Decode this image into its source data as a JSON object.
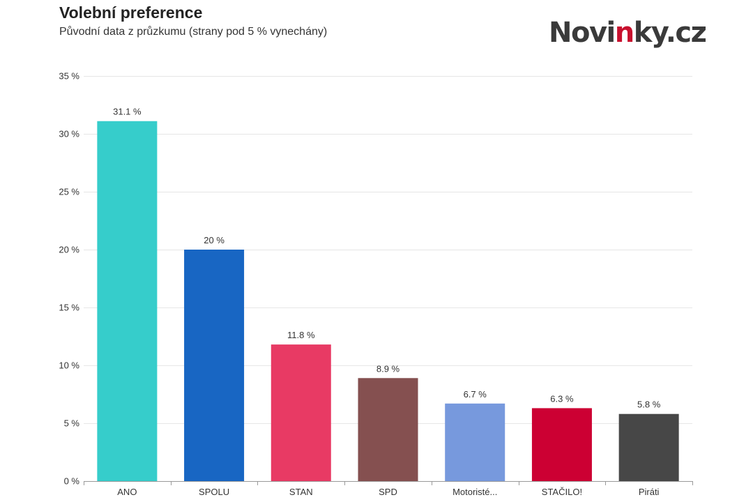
{
  "chart_data": {
    "type": "bar",
    "title": "Volební preference",
    "subtitle": "Původní data z průzkumu (strany pod 5 % vynechány)",
    "xlabel": "",
    "ylabel": "",
    "categories": [
      "ANO",
      "SPOLU",
      "STAN",
      "SPD",
      "Motoristé...",
      "STAČILO!",
      "Piráti"
    ],
    "values": [
      31.1,
      20,
      11.8,
      8.9,
      6.7,
      6.3,
      5.8
    ],
    "value_labels": [
      "31.1 %",
      "20 %",
      "11.8 %",
      "8.9 %",
      "6.7 %",
      "6.3 %",
      "5.8 %"
    ],
    "colors": [
      "#36cdcb",
      "#1866c3",
      "#e83a64",
      "#855050",
      "#7799dd",
      "#cc0033",
      "#474747"
    ],
    "ylim": [
      0,
      35
    ],
    "yticks": [
      0,
      5,
      10,
      15,
      20,
      25,
      30,
      35
    ],
    "ytick_labels": [
      "0 %",
      "5 %",
      "10 %",
      "15 %",
      "20 %",
      "25 %",
      "30 %",
      "35 %"
    ],
    "grid": true,
    "legend": "none"
  },
  "brand": {
    "logo_before": "Novi",
    "logo_accent": "n",
    "logo_after": "ky.cz",
    "accent_color": "#c8102e",
    "text_color": "#3a3a3a"
  }
}
